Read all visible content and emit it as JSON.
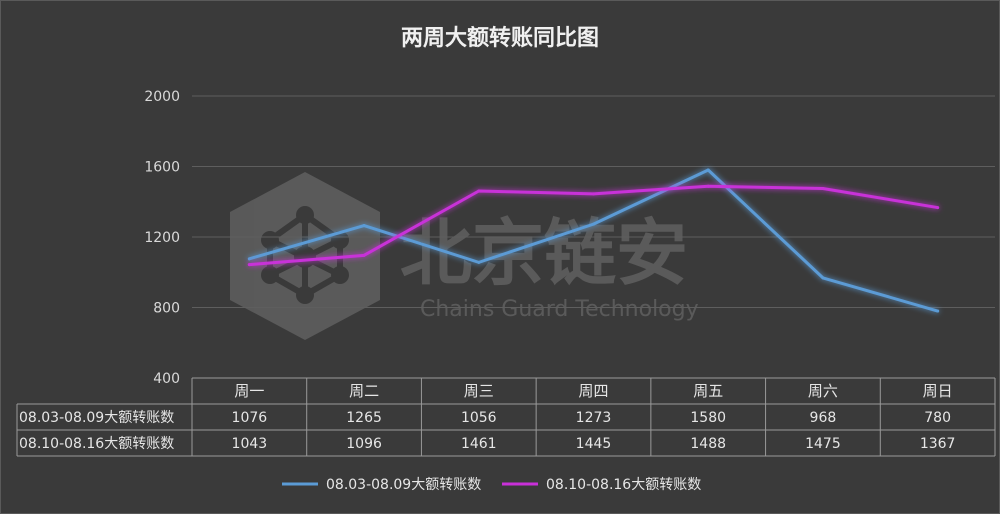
{
  "chart_data": {
    "type": "line",
    "title": "两周大额转账同比图",
    "watermark": {
      "brand": "北京链安",
      "tagline": "Chains Guard Technology"
    },
    "categories": [
      "周一",
      "周二",
      "周三",
      "周四",
      "周五",
      "周六",
      "周日"
    ],
    "series": [
      {
        "name": "08.03-08.09大额转账数",
        "color": "#5b9bd5",
        "values": [
          1076,
          1265,
          1056,
          1273,
          1580,
          968,
          780
        ]
      },
      {
        "name": "08.10-08.16大额转账数",
        "color": "#c830d8",
        "values": [
          1043,
          1096,
          1461,
          1445,
          1488,
          1475,
          1367
        ]
      }
    ],
    "yticks": [
      400,
      800,
      1200,
      1600,
      2000
    ],
    "ylim": [
      400,
      2000
    ],
    "grid": true,
    "legend": "bottom",
    "data_table": true
  }
}
